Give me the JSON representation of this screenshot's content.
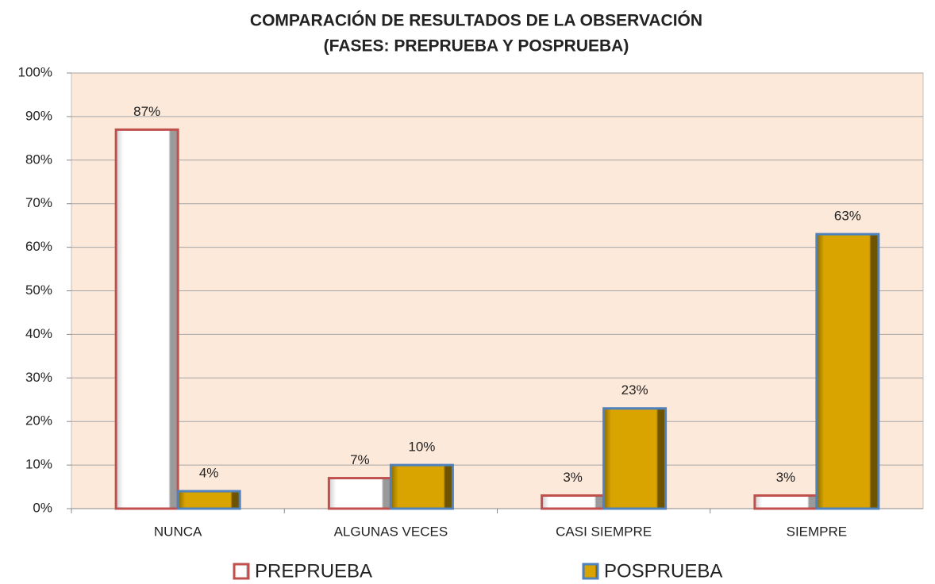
{
  "chart_data": {
    "type": "bar",
    "title": "COMPARACIÓN DE RESULTADOS DE LA OBSERVACIÓN",
    "subtitle": "(FASES: PREPRUEBA Y POSPRUEBA)",
    "categories": [
      "NUNCA",
      "ALGUNAS VECES",
      "CASI SIEMPRE",
      "SIEMPRE"
    ],
    "series": [
      {
        "name": "PREPRUEBA",
        "color": "#ffffff",
        "edge": "#c0504d",
        "values": [
          87,
          7,
          3,
          3
        ],
        "value_labels": [
          "87%",
          "7%",
          "3%",
          "3%"
        ]
      },
      {
        "name": "POSPRUEBA",
        "color": "#d4a000",
        "edge": "#4f81bd",
        "values": [
          4,
          10,
          23,
          63
        ],
        "value_labels": [
          "4%",
          "10%",
          "23%",
          "63%"
        ]
      }
    ],
    "ylim": [
      0,
      100
    ],
    "yticks": [
      {
        "value": 0,
        "label": "0%"
      },
      {
        "value": 10,
        "label": "10%"
      },
      {
        "value": 20,
        "label": "20%"
      },
      {
        "value": 30,
        "label": "30%"
      },
      {
        "value": 40,
        "label": "40%"
      },
      {
        "value": 50,
        "label": "50%"
      },
      {
        "value": 60,
        "label": "60%"
      },
      {
        "value": 70,
        "label": "70%"
      },
      {
        "value": 80,
        "label": "80%"
      },
      {
        "value": 90,
        "label": "90%"
      },
      {
        "value": 100,
        "label": "100%"
      }
    ],
    "grid": true,
    "legend": "bottom"
  }
}
